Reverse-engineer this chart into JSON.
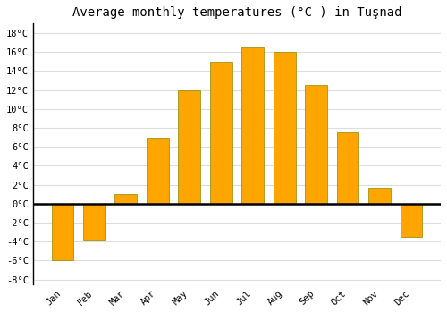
{
  "months": [
    "Jan",
    "Feb",
    "Mar",
    "Apr",
    "May",
    "Jun",
    "Jul",
    "Aug",
    "Sep",
    "Oct",
    "Nov",
    "Dec"
  ],
  "values": [
    -6.0,
    -3.8,
    1.0,
    7.0,
    12.0,
    15.0,
    16.5,
    16.0,
    12.5,
    7.5,
    1.7,
    -3.5
  ],
  "bar_color": "#FFA500",
  "bar_edge_color": "#888800",
  "title": "Average monthly temperatures (°C ) in Tuşnad",
  "title_fontsize": 10,
  "ylim": [
    -8.5,
    19
  ],
  "yticks": [
    -8,
    -6,
    -4,
    -2,
    0,
    2,
    4,
    6,
    8,
    10,
    12,
    14,
    16,
    18
  ],
  "background_color": "#ffffff",
  "fig_background_color": "#ffffff",
  "grid_color": "#dddddd",
  "bar_width": 0.7,
  "zero_line_color": "#000000",
  "left_spine_color": "#000000",
  "tick_label_fontsize": 7.5
}
